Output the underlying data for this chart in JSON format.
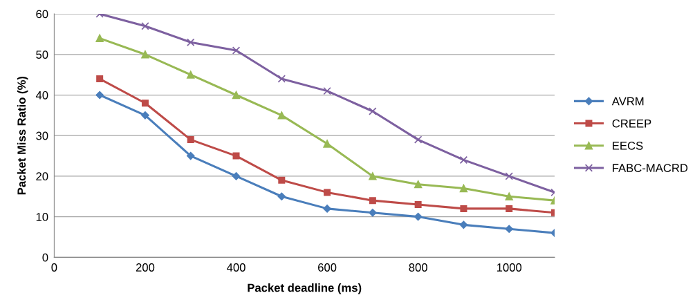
{
  "chart_data": {
    "type": "line",
    "xlabel": "Packet deadline (ms)",
    "ylabel": "Packet Miss Ratio (%)",
    "x": [
      100,
      200,
      300,
      400,
      500,
      600,
      700,
      800,
      900,
      1000,
      1100
    ],
    "series": [
      {
        "name": "AVRM",
        "color": "#4a7ebb",
        "marker": "diamond",
        "values": [
          40,
          35,
          25,
          20,
          15,
          12,
          11,
          10,
          8,
          7,
          6
        ]
      },
      {
        "name": "CREEP",
        "color": "#be4b48",
        "marker": "square",
        "values": [
          44,
          38,
          29,
          25,
          19,
          16,
          14,
          13,
          12,
          12,
          11
        ]
      },
      {
        "name": "EECS",
        "color": "#98b954",
        "marker": "triangle",
        "values": [
          54,
          50,
          45,
          40,
          35,
          28,
          20,
          18,
          17,
          15,
          14
        ]
      },
      {
        "name": "FABC-MACRD",
        "color": "#7d60a0",
        "marker": "cross",
        "values": [
          60,
          57,
          53,
          51,
          44,
          41,
          36,
          29,
          24,
          20,
          16
        ]
      }
    ],
    "xlim": [
      0,
      1100
    ],
    "xticks": [
      0,
      200,
      400,
      600,
      800,
      1000
    ],
    "ylim": [
      0,
      60
    ],
    "yticks": [
      0,
      10,
      20,
      30,
      40,
      50,
      60
    ],
    "grid": "y",
    "legend": "right"
  }
}
